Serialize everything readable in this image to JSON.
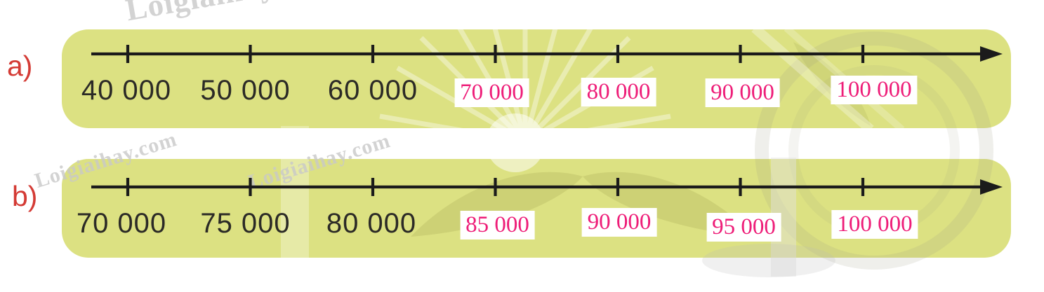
{
  "colors": {
    "panel_green": "#dce182",
    "axis_black": "#1b1b1b",
    "printed_label_black": "#2b2a26",
    "answer_pink": "#ee1d78",
    "answer_box_bg": "#ffffff",
    "part_label_red": "#d43b35",
    "watermark_gray": "#c9c9c9"
  },
  "watermarks": {
    "top": "Loigiaihay",
    "left": "Loigiaihay.com",
    "mid": "Loigiaihay.com"
  },
  "chart_data": [
    {
      "type": "number_line",
      "part_label": "a)",
      "start": 40000,
      "end": 100000,
      "step": 10000,
      "tick_values": [
        40000,
        50000,
        60000,
        70000,
        80000,
        90000,
        100000
      ],
      "printed_labels": [
        "40 000",
        "50 000",
        "60 000"
      ],
      "answer_labels": [
        "70 000",
        "80 000",
        "90 000",
        "100 000"
      ],
      "arrow": true
    },
    {
      "type": "number_line",
      "part_label": "b)",
      "start": 70000,
      "end": 100000,
      "step": 5000,
      "tick_values": [
        70000,
        75000,
        80000,
        85000,
        90000,
        95000,
        100000
      ],
      "printed_labels": [
        "70 000",
        "75 000",
        "80 000"
      ],
      "answer_labels": [
        "85 000",
        "90 000",
        "95 000",
        "100 000"
      ],
      "arrow": true
    }
  ]
}
